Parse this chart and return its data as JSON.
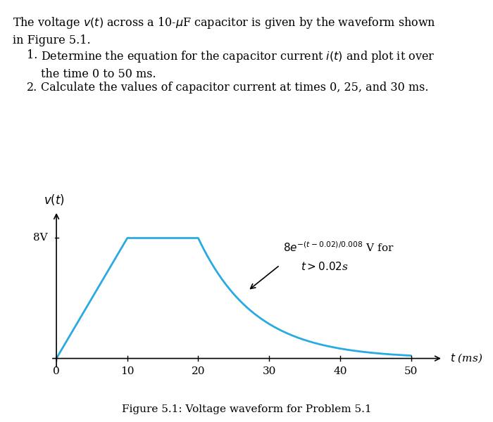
{
  "fig_caption": "Figure 5.1: Voltage waveform for Problem 5.1",
  "xlim": [
    -1,
    56
  ],
  "ylim": [
    -1.0,
    10.5
  ],
  "xticks": [
    0,
    10,
    20,
    30,
    40,
    50
  ],
  "waveform_color": "#29abe2",
  "waveform_linewidth": 2.0,
  "background_color": "#ffffff",
  "text_para1": "The voltage $v(t)$ across a 10-$\\mu$F capacitor is given by the waveform shown\nin Figure 5.1.",
  "text_item1_num": "1.",
  "text_item1_body": "Determine the equation for the capacitor current $i(t)$ and plot it over\nthe time 0 to 50 ms.",
  "text_item2_num": "2.",
  "text_item2_body": "Calculate the values of capacitor current at times 0, 25, and 30 ms.",
  "fontsize_text": 11.5
}
